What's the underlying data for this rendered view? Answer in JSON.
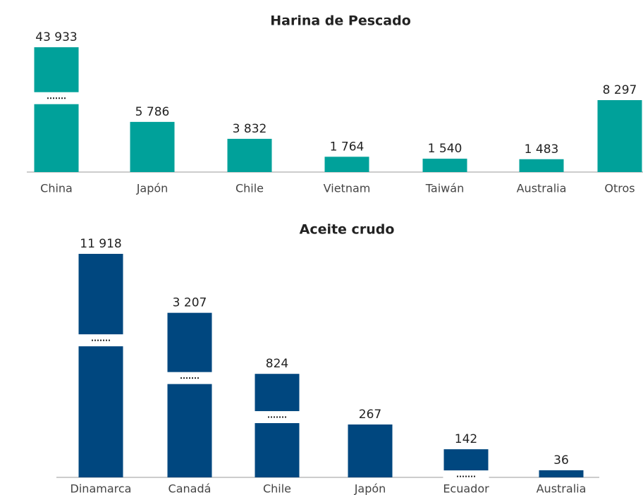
{
  "chart_data": [
    {
      "type": "bar",
      "title": "Harina de Pescado",
      "categories": [
        "China",
        "Japón",
        "Chile",
        "Vietnam",
        "Taiwán",
        "Australia",
        "Otros"
      ],
      "values": [
        43933,
        5786,
        3832,
        1764,
        1540,
        1483,
        8297
      ],
      "value_labels": [
        "43 933",
        "5 786",
        "3 832",
        "1 764",
        "1 540",
        "1 483",
        "8 297"
      ],
      "color": "#00a19a"
    },
    {
      "type": "bar",
      "title": "Aceite crudo",
      "categories": [
        "Dinamarca",
        "Canadá",
        "Chile",
        "Japón",
        "Ecuador",
        "Australia"
      ],
      "values": [
        11918,
        3207,
        824,
        267,
        142,
        36
      ],
      "value_labels": [
        "11 918",
        "3 207",
        "824",
        "267",
        "142",
        "36"
      ],
      "color": "#00477f"
    }
  ]
}
